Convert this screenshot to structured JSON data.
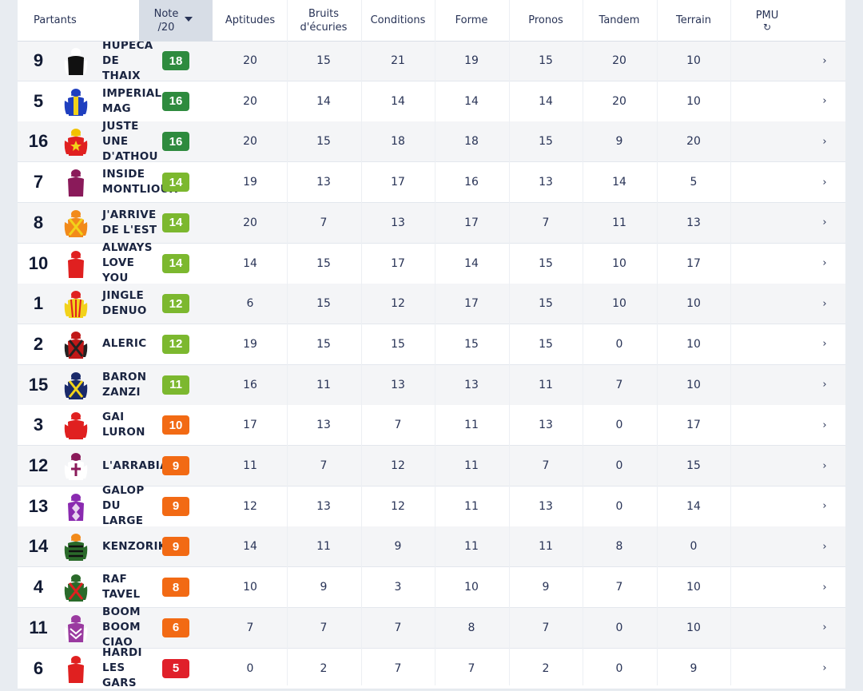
{
  "header": {
    "partants": "Partants",
    "note_line1": "Note",
    "note_line2": "/20",
    "aptitudes": "Aptitudes",
    "bruits_line1": "Bruits",
    "bruits_line2": "d'écuries",
    "conditions": "Conditions",
    "forme": "Forme",
    "pronos": "Pronos",
    "tandem": "Tandem",
    "terrain": "Terrain",
    "pmu": "PMU",
    "refresh_icon": "refresh-icon",
    "sort_icon": "sort-desc-icon"
  },
  "colors": {
    "dark_green": "#2e8b3e",
    "light_green": "#7cb82f",
    "orange": "#f26a14",
    "red": "#e0202a"
  },
  "rows": [
    {
      "num": "9",
      "name": "HUPECA\nDE\nTHAIX",
      "note": "18",
      "badge": "dark_green",
      "aptitudes": "20",
      "bruits": "15",
      "conditions": "21",
      "forme": "19",
      "pronos": "15",
      "tandem": "20",
      "terrain": "10",
      "silk": {
        "body": "#111111",
        "sleeve": "#ffffff",
        "cap": "#ffffff",
        "pattern": "none"
      }
    },
    {
      "num": "5",
      "name": "IMPERIAL\nMAG",
      "note": "16",
      "badge": "dark_green",
      "aptitudes": "20",
      "bruits": "14",
      "conditions": "14",
      "forme": "14",
      "pronos": "14",
      "tandem": "20",
      "terrain": "10",
      "silk": {
        "body": "#1f3fbf",
        "sleeve": "#1f3fbf",
        "cap": "#1f3fbf",
        "pattern": "stripe-yellow"
      }
    },
    {
      "num": "16",
      "name": "JUSTE\nUNE\nD'ATHOU",
      "note": "16",
      "badge": "dark_green",
      "aptitudes": "20",
      "bruits": "15",
      "conditions": "18",
      "forme": "18",
      "pronos": "15",
      "tandem": "9",
      "terrain": "20",
      "silk": {
        "body": "#e02020",
        "sleeve": "#e02020",
        "cap": "#f2c200",
        "pattern": "star"
      }
    },
    {
      "num": "7",
      "name": "INSIDE\nMONTLIOUX",
      "note": "14",
      "badge": "light_green",
      "aptitudes": "19",
      "bruits": "13",
      "conditions": "17",
      "forme": "16",
      "pronos": "13",
      "tandem": "14",
      "terrain": "5",
      "silk": {
        "body": "#8a1a5a",
        "sleeve": "#ffffff",
        "cap": "#8a1a5a",
        "pattern": "none"
      }
    },
    {
      "num": "8",
      "name": "J'ARRIVE\nDE L'EST",
      "note": "14",
      "badge": "light_green",
      "aptitudes": "20",
      "bruits": "7",
      "conditions": "13",
      "forme": "17",
      "pronos": "7",
      "tandem": "11",
      "terrain": "13",
      "silk": {
        "body": "#f28a1a",
        "sleeve": "#f28a1a",
        "cap": "#f28a1a",
        "pattern": "cross-yellow"
      }
    },
    {
      "num": "10",
      "name": "ALWAYS\nLOVE\nYOU",
      "note": "14",
      "badge": "light_green",
      "aptitudes": "14",
      "bruits": "15",
      "conditions": "17",
      "forme": "14",
      "pronos": "15",
      "tandem": "10",
      "terrain": "17",
      "silk": {
        "body": "#e02020",
        "sleeve": "#ffffff",
        "cap": "#e02020",
        "pattern": "none"
      }
    },
    {
      "num": "1",
      "name": "JINGLE\nDENUO",
      "note": "12",
      "badge": "light_green",
      "aptitudes": "6",
      "bruits": "15",
      "conditions": "12",
      "forme": "17",
      "pronos": "15",
      "tandem": "10",
      "terrain": "10",
      "silk": {
        "body": "#f2d21a",
        "sleeve": "#f2d21a",
        "cap": "#e02020",
        "pattern": "stripes-red"
      }
    },
    {
      "num": "2",
      "name": "ALERIC",
      "note": "12",
      "badge": "light_green",
      "aptitudes": "19",
      "bruits": "15",
      "conditions": "15",
      "forme": "15",
      "pronos": "15",
      "tandem": "0",
      "terrain": "10",
      "silk": {
        "body": "#c01818",
        "sleeve": "#222222",
        "cap": "#c01818",
        "pattern": "cross-dark"
      }
    },
    {
      "num": "15",
      "name": "BARON\nZANZI",
      "note": "11",
      "badge": "light_green",
      "aptitudes": "16",
      "bruits": "11",
      "conditions": "13",
      "forme": "13",
      "pronos": "11",
      "tandem": "7",
      "terrain": "10",
      "silk": {
        "body": "#1a2a6a",
        "sleeve": "#1a2a6a",
        "cap": "#1a2a6a",
        "pattern": "cross-yellow"
      }
    },
    {
      "num": "3",
      "name": "GAI\nLURON",
      "note": "10",
      "badge": "orange",
      "aptitudes": "17",
      "bruits": "13",
      "conditions": "7",
      "forme": "11",
      "pronos": "13",
      "tandem": "0",
      "terrain": "17",
      "silk": {
        "body": "#e02020",
        "sleeve": "#e02020",
        "cap": "#e02020",
        "pattern": "none"
      }
    },
    {
      "num": "12",
      "name": "L'ARRABIA",
      "note": "9",
      "badge": "orange",
      "aptitudes": "11",
      "bruits": "7",
      "conditions": "12",
      "forme": "11",
      "pronos": "7",
      "tandem": "0",
      "terrain": "15",
      "silk": {
        "body": "#ffffff",
        "sleeve": "#ffffff",
        "cap": "#8a1a5a",
        "pattern": "cross-purple"
      }
    },
    {
      "num": "13",
      "name": "GALOP\nDU\nLARGE",
      "note": "9",
      "badge": "orange",
      "aptitudes": "12",
      "bruits": "13",
      "conditions": "12",
      "forme": "11",
      "pronos": "13",
      "tandem": "0",
      "terrain": "14",
      "silk": {
        "body": "#8a2ab0",
        "sleeve": "#ffffff",
        "cap": "#8a2ab0",
        "pattern": "diamonds"
      }
    },
    {
      "num": "14",
      "name": "KENZORIK",
      "note": "9",
      "badge": "orange",
      "aptitudes": "14",
      "bruits": "11",
      "conditions": "9",
      "forme": "11",
      "pronos": "11",
      "tandem": "8",
      "terrain": "0",
      "silk": {
        "body": "#2a6a2a",
        "sleeve": "#2a6a2a",
        "cap": "#f28a1a",
        "pattern": "hoops"
      }
    },
    {
      "num": "4",
      "name": "RAF\nTAVEL",
      "note": "8",
      "badge": "orange",
      "aptitudes": "10",
      "bruits": "9",
      "conditions": "3",
      "forme": "10",
      "pronos": "9",
      "tandem": "7",
      "terrain": "10",
      "silk": {
        "body": "#2a6a2a",
        "sleeve": "#2a6a2a",
        "cap": "#2a6a2a",
        "pattern": "cross-red"
      }
    },
    {
      "num": "11",
      "name": "BOOM\nBOOM\nCIAO",
      "note": "6",
      "badge": "orange",
      "aptitudes": "7",
      "bruits": "7",
      "conditions": "7",
      "forme": "8",
      "pronos": "7",
      "tandem": "0",
      "terrain": "10",
      "silk": {
        "body": "#9a3aa0",
        "sleeve": "#ffffff",
        "cap": "#9a3aa0",
        "pattern": "chevrons"
      }
    },
    {
      "num": "6",
      "name": "HARDI\nLES\nGARS",
      "note": "5",
      "badge": "red",
      "aptitudes": "0",
      "bruits": "2",
      "conditions": "7",
      "forme": "7",
      "pronos": "2",
      "tandem": "0",
      "terrain": "9",
      "silk": {
        "body": "#e02020",
        "sleeve": "#ffffff",
        "cap": "#e02020",
        "pattern": "none"
      }
    }
  ]
}
